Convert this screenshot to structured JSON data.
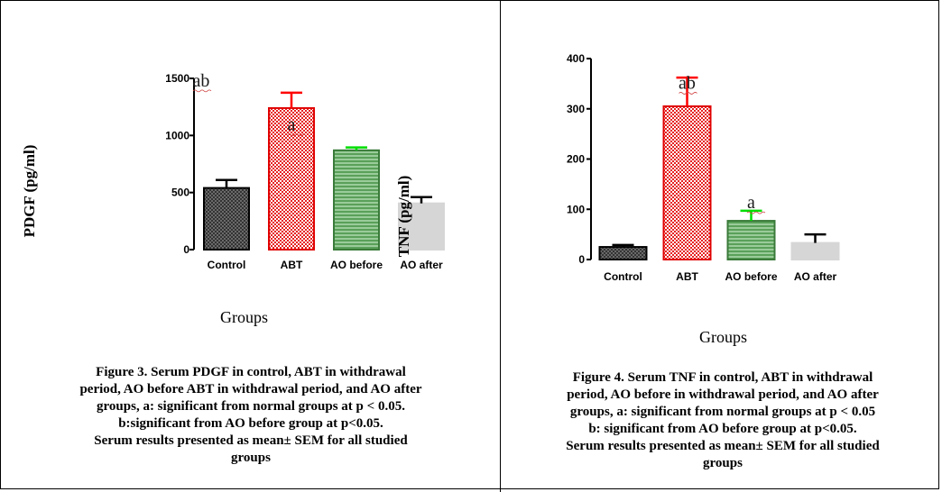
{
  "figures": [
    {
      "x_title": "Groups",
      "caption_lines": [
        "Figure 3. Serum PDGF in control, ABT in withdrawal",
        "period, AO before ABT in withdrawal period, and AO after",
        "groups, a: significant from normal groups at p < 0.05.",
        "b:significant from AO before group at p<0.05.",
        "Serum results presented as mean± SEM for all studied",
        "groups"
      ]
    },
    {
      "x_title": "Groups",
      "caption_lines": [
        "Figure 4. Serum TNF in control, ABT in withdrawal",
        "period, AO before in withdrawal period, and AO after",
        "groups, a: significant from normal groups at p < 0.05",
        "b: significant from AO before group at p<0.05.",
        "Serum results presented as mean± SEM for all studied",
        "groups"
      ]
    }
  ],
  "chart_data": [
    {
      "type": "bar",
      "ylabel": "PDGF (pg/ml)",
      "xlabel": "Groups",
      "categories": [
        "Control",
        "ABT",
        "AO before",
        "AO after"
      ],
      "values": [
        540,
        1240,
        870,
        405
      ],
      "errors": [
        70,
        135,
        25,
        55
      ],
      "ylim": [
        0,
        1500
      ],
      "yticks": [
        "0",
        "500",
        "1000",
        "1500"
      ],
      "fills": [
        "dark-check",
        "red-check",
        "green-stripe",
        "light-gray"
      ],
      "errorColors": [
        "#000000",
        "#ff0000",
        "#00dd00",
        "#000000"
      ],
      "annotations": [
        {
          "text": "ab",
          "category": "Control",
          "value": 1430
        },
        {
          "text": "a",
          "category": "ABT",
          "value": 1045
        }
      ],
      "overlay_text": "TNF (pg/ml)"
    },
    {
      "type": "bar",
      "ylabel": "",
      "xlabel": "Groups",
      "categories": [
        "Control",
        "ABT",
        "AO before",
        "AO after"
      ],
      "values": [
        25,
        305,
        77,
        33
      ],
      "errors": [
        4,
        57,
        20,
        17
      ],
      "ylim": [
        0,
        400
      ],
      "yticks": [
        "0",
        "100",
        "200",
        "300",
        "400"
      ],
      "fills": [
        "dark-check",
        "red-check",
        "green-stripe",
        "light-gray"
      ],
      "errorColors": [
        "#000000",
        "#ff0000",
        "#00dd00",
        "#000000"
      ],
      "annotations": [
        {
          "text": "ab",
          "category": "ABT",
          "value": 340
        },
        {
          "text": "a",
          "category": "AO before",
          "value": 102
        }
      ]
    }
  ]
}
